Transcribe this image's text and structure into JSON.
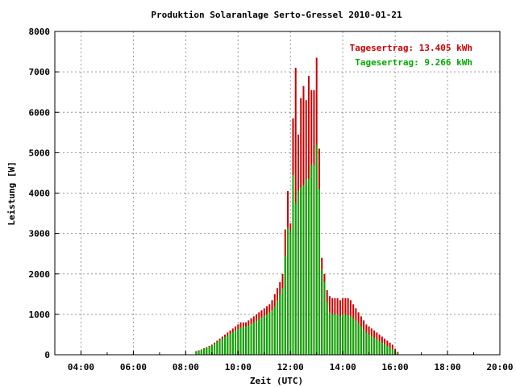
{
  "chart_data": {
    "type": "bar",
    "title": "Produktion Solaranlage Serto-Gressel 2010-01-21",
    "xlabel": "Zeit (UTC)",
    "ylabel": "Leistung [W]",
    "xlim_hours": [
      3.0,
      20.0
    ],
    "ylim": [
      0,
      8000
    ],
    "x_tick_labels": [
      "04:00",
      "06:00",
      "08:00",
      "10:00",
      "12:00",
      "14:00",
      "16:00",
      "18:00",
      "20:00"
    ],
    "y_tick_labels": [
      "0",
      "1000",
      "2000",
      "3000",
      "4000",
      "5000",
      "6000",
      "7000",
      "8000"
    ],
    "grid": true,
    "legend_position": "top-right",
    "colors": {
      "series1": "#cc0000",
      "series2": "#00aa00"
    },
    "x_hours": [
      8.4,
      8.5,
      8.6,
      8.7,
      8.8,
      8.9,
      9.0,
      9.1,
      9.2,
      9.3,
      9.4,
      9.5,
      9.6,
      9.7,
      9.8,
      9.9,
      10.0,
      10.1,
      10.2,
      10.3,
      10.4,
      10.5,
      10.6,
      10.7,
      10.8,
      10.9,
      11.0,
      11.1,
      11.2,
      11.3,
      11.4,
      11.5,
      11.6,
      11.7,
      11.8,
      11.9,
      12.0,
      12.1,
      12.2,
      12.3,
      12.4,
      12.5,
      12.6,
      12.7,
      12.8,
      12.9,
      13.0,
      13.1,
      13.2,
      13.3,
      13.4,
      13.5,
      13.6,
      13.7,
      13.8,
      13.9,
      14.0,
      14.1,
      14.2,
      14.3,
      14.4,
      14.5,
      14.6,
      14.7,
      14.8,
      14.9,
      15.0,
      15.1,
      15.2,
      15.3,
      15.4,
      15.5,
      15.6,
      15.7,
      15.8,
      15.9,
      16.0,
      16.1
    ],
    "series": [
      {
        "name": "Tagesertrag: 13.405 kWh",
        "values": [
          90,
          110,
          130,
          160,
          190,
          220,
          250,
          300,
          350,
          400,
          450,
          500,
          550,
          600,
          650,
          700,
          750,
          800,
          800,
          800,
          850,
          900,
          950,
          1000,
          1050,
          1100,
          1150,
          1200,
          1250,
          1350,
          1500,
          1650,
          1800,
          2000,
          3100,
          4050,
          3250,
          5850,
          7100,
          5450,
          6350,
          6650,
          6300,
          6900,
          6550,
          6550,
          7350,
          5100,
          2400,
          2000,
          1600,
          1450,
          1400,
          1400,
          1400,
          1350,
          1400,
          1400,
          1400,
          1350,
          1250,
          1150,
          1050,
          950,
          850,
          750,
          700,
          650,
          600,
          550,
          500,
          450,
          400,
          350,
          300,
          250,
          150,
          70
        ],
        "label": "Tagesertrag: 13.405 kWh"
      },
      {
        "name": "Tagesertrag: 9.266 kWh",
        "values": [
          80,
          100,
          120,
          150,
          180,
          200,
          230,
          270,
          310,
          360,
          400,
          440,
          480,
          520,
          560,
          600,
          640,
          680,
          690,
          700,
          720,
          760,
          800,
          840,
          880,
          920,
          960,
          1000,
          1050,
          1100,
          1200,
          1350,
          1500,
          1650,
          2450,
          3150,
          3050,
          4450,
          3750,
          4050,
          4150,
          4200,
          4350,
          4350,
          4700,
          4700,
          5200,
          4100,
          2100,
          1800,
          1300,
          1050,
          1000,
          1000,
          1000,
          950,
          1000,
          1000,
          980,
          950,
          900,
          850,
          780,
          700,
          620,
          550,
          500,
          460,
          420,
          380,
          340,
          300,
          260,
          220,
          180,
          140,
          90,
          40
        ],
        "label": "Tagesertrag: 9.266 kWh"
      }
    ]
  }
}
